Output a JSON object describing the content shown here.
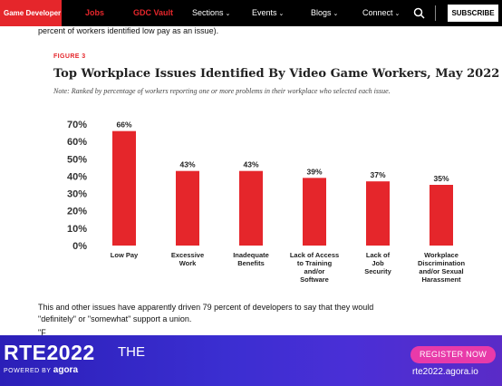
{
  "nav": {
    "brand": "Game Developer",
    "red_links": [
      "Jobs",
      "GDC Vault"
    ],
    "menus": [
      "Sections",
      "Events",
      "Blogs",
      "Connect"
    ],
    "subscribe": "SUBSCRIBE",
    "icons": [
      "search-icon",
      "chevron-down-icon"
    ],
    "colors": {
      "background": "#000000",
      "accent": "#e5262b"
    }
  },
  "article": {
    "line_top": "percent of workers identified low pay as an issue).",
    "para_line1": "This and other issues have apparently driven 79 percent of developers to say that they would",
    "para_line2": "\"definitely\" or \"somewhat\" support a union.",
    "partial_line": "\"F"
  },
  "figure": {
    "label": "FIGURE 3",
    "title": "Top Workplace Issues Identified By Video Game Workers, May 2022",
    "note": "Note: Ranked by percentage of workers reporting one or more problems in their workplace who selected each issue."
  },
  "chart_data": {
    "type": "bar",
    "categories": [
      [
        "Low Pay"
      ],
      [
        "Excessive",
        "Work"
      ],
      [
        "Inadequate",
        "Benefits"
      ],
      [
        "Lack of Access",
        "to Training",
        "and/or",
        "Software"
      ],
      [
        "Lack of",
        "Job",
        "Security"
      ],
      [
        "Workplace",
        "Discrimination",
        "and/or Sexual",
        "Harassment"
      ]
    ],
    "values": [
      66,
      43,
      43,
      39,
      37,
      35
    ],
    "data_labels": [
      "66%",
      "43%",
      "43%",
      "39%",
      "37%",
      "35%"
    ],
    "yticks": [
      "0%",
      "10%",
      "20%",
      "30%",
      "40%",
      "50%",
      "60%",
      "70%"
    ],
    "ylim": [
      0,
      70
    ],
    "bar_color": "#e5262b",
    "grid": false,
    "legend": "none"
  },
  "ad": {
    "headline": "RTE2022",
    "headline_suffix": "THE",
    "powered_by": "POWERED BY",
    "powered_brand": "agora",
    "register": "REGISTER NOW",
    "url": "rte2022.agora.io"
  }
}
